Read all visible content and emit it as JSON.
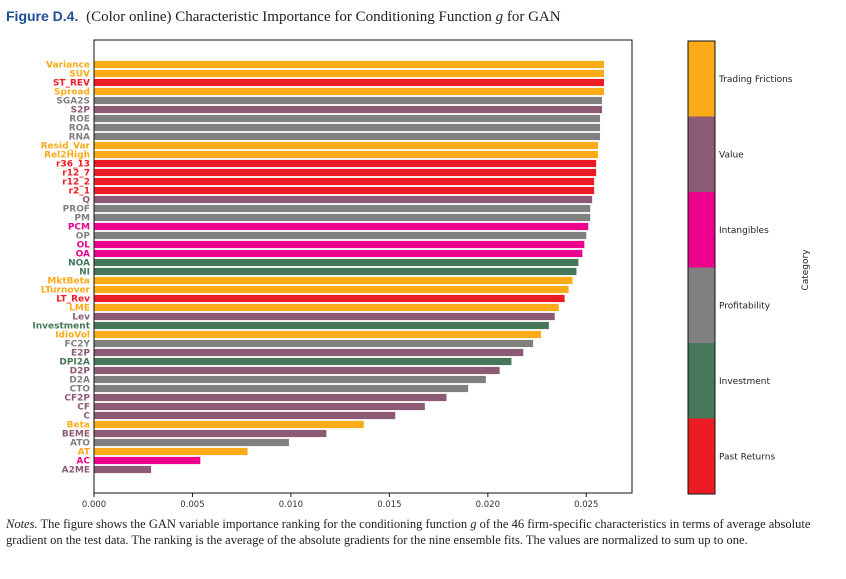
{
  "caption": {
    "figure_label": "Figure D.4.",
    "text_before": "(Color online) Characteristic Importance for Conditioning Function",
    "symbol": "g",
    "text_after": "for GAN"
  },
  "notes": {
    "label": "Notes.",
    "text_1": "The figure shows the GAN variable importance ranking for the conditioning function",
    "symbol": "g",
    "text_2": "of the 46 firm-specific characteristics in terms of average absolute gradient on the test data. The ranking is the average of the absolute gradients for the nine ensemble fits. The values are normalized to sum up to one."
  },
  "colors": {
    "Trading Frictions": "#fbab18",
    "Value": "#8c5a74",
    "Intangibles": "#ec008c",
    "Profitability": "#808080",
    "Investment": "#46775b",
    "Past Returns": "#ed1c24"
  },
  "chart_data": {
    "type": "bar",
    "orientation": "horizontal",
    "xlim": [
      0,
      0.0272
    ],
    "xticks": [
      "0.000",
      "0.005",
      "0.010",
      "0.015",
      "0.020",
      "0.025"
    ],
    "tick_values": [
      0,
      0.005,
      0.01,
      0.015,
      0.02,
      0.025
    ],
    "colorbar": {
      "title": "Category",
      "labels": [
        "Trading Frictions",
        "Value",
        "Intangibles",
        "Profitability",
        "Investment",
        "Past Returns"
      ]
    },
    "bars": [
      {
        "label": "Variance",
        "value": 0.0259,
        "category": "Trading Frictions"
      },
      {
        "label": "SUV",
        "value": 0.0259,
        "category": "Trading Frictions"
      },
      {
        "label": "ST_REV",
        "value": 0.0259,
        "category": "Past Returns"
      },
      {
        "label": "Spread",
        "value": 0.0259,
        "category": "Trading Frictions"
      },
      {
        "label": "SGA2S",
        "value": 0.0258,
        "category": "Profitability"
      },
      {
        "label": "S2P",
        "value": 0.0258,
        "category": "Value"
      },
      {
        "label": "ROE",
        "value": 0.0257,
        "category": "Profitability"
      },
      {
        "label": "ROA",
        "value": 0.0257,
        "category": "Profitability"
      },
      {
        "label": "RNA",
        "value": 0.0257,
        "category": "Profitability"
      },
      {
        "label": "Resid_Var",
        "value": 0.0256,
        "category": "Trading Frictions"
      },
      {
        "label": "Rel2High",
        "value": 0.0256,
        "category": "Trading Frictions"
      },
      {
        "label": "r36_13",
        "value": 0.0255,
        "category": "Past Returns"
      },
      {
        "label": "r12_7",
        "value": 0.0255,
        "category": "Past Returns"
      },
      {
        "label": "r12_2",
        "value": 0.0254,
        "category": "Past Returns"
      },
      {
        "label": "r2_1",
        "value": 0.0254,
        "category": "Past Returns"
      },
      {
        "label": "Q",
        "value": 0.0253,
        "category": "Value"
      },
      {
        "label": "PROF",
        "value": 0.0252,
        "category": "Profitability"
      },
      {
        "label": "PM",
        "value": 0.0252,
        "category": "Profitability"
      },
      {
        "label": "PCM",
        "value": 0.0251,
        "category": "Intangibles"
      },
      {
        "label": "OP",
        "value": 0.025,
        "category": "Profitability"
      },
      {
        "label": "OL",
        "value": 0.0249,
        "category": "Intangibles"
      },
      {
        "label": "OA",
        "value": 0.0248,
        "category": "Intangibles"
      },
      {
        "label": "NOA",
        "value": 0.0246,
        "category": "Investment"
      },
      {
        "label": "NI",
        "value": 0.0245,
        "category": "Investment"
      },
      {
        "label": "MktBeta",
        "value": 0.0243,
        "category": "Trading Frictions"
      },
      {
        "label": "LTurnover",
        "value": 0.0241,
        "category": "Trading Frictions"
      },
      {
        "label": "LT_Rev",
        "value": 0.0239,
        "category": "Past Returns"
      },
      {
        "label": "LME",
        "value": 0.0236,
        "category": "Trading Frictions"
      },
      {
        "label": "Lev",
        "value": 0.0234,
        "category": "Value"
      },
      {
        "label": "Investment",
        "value": 0.0231,
        "category": "Investment"
      },
      {
        "label": "IdioVol",
        "value": 0.0227,
        "category": "Trading Frictions"
      },
      {
        "label": "FC2Y",
        "value": 0.0223,
        "category": "Profitability"
      },
      {
        "label": "E2P",
        "value": 0.0218,
        "category": "Value"
      },
      {
        "label": "DPI2A",
        "value": 0.0212,
        "category": "Investment"
      },
      {
        "label": "D2P",
        "value": 0.0206,
        "category": "Value"
      },
      {
        "label": "D2A",
        "value": 0.0199,
        "category": "Profitability"
      },
      {
        "label": "CTO",
        "value": 0.019,
        "category": "Profitability"
      },
      {
        "label": "CF2P",
        "value": 0.0179,
        "category": "Value"
      },
      {
        "label": "CF",
        "value": 0.0168,
        "category": "Value"
      },
      {
        "label": "C",
        "value": 0.0153,
        "category": "Value"
      },
      {
        "label": "Beta",
        "value": 0.0137,
        "category": "Trading Frictions"
      },
      {
        "label": "BEME",
        "value": 0.0118,
        "category": "Value"
      },
      {
        "label": "ATO",
        "value": 0.0099,
        "category": "Profitability"
      },
      {
        "label": "AT",
        "value": 0.0078,
        "category": "Trading Frictions"
      },
      {
        "label": "AC",
        "value": 0.0054,
        "category": "Intangibles"
      },
      {
        "label": "A2ME",
        "value": 0.0029,
        "category": "Value"
      }
    ]
  }
}
